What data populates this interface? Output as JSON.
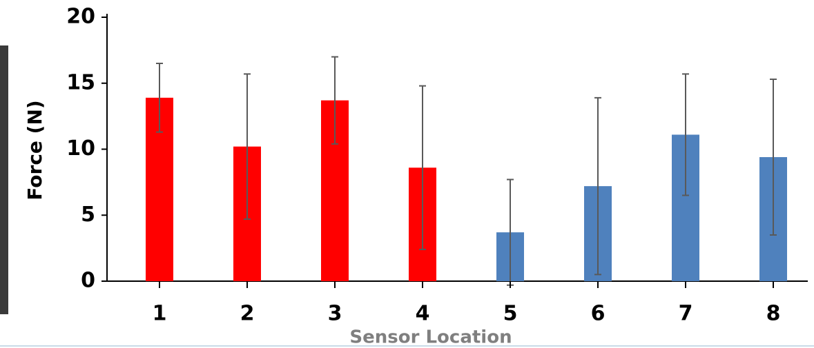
{
  "chart_data": {
    "type": "bar",
    "categories": [
      "1",
      "2",
      "3",
      "4",
      "5",
      "6",
      "7",
      "8"
    ],
    "values": [
      13.9,
      10.2,
      13.7,
      8.6,
      3.7,
      7.2,
      11.1,
      9.4
    ],
    "errors": [
      2.6,
      5.5,
      3.3,
      6.2,
      4.0,
      6.7,
      4.6,
      5.9
    ],
    "colors": [
      "#ff0000",
      "#ff0000",
      "#ff0000",
      "#ff0000",
      "#4f81bd",
      "#4f81bd",
      "#4f81bd",
      "#4f81bd"
    ],
    "ylim": [
      0,
      20
    ],
    "yticks": [
      0,
      5,
      10,
      15,
      20
    ],
    "ylabel": "Force (N)",
    "xlabel": "Sensor Location"
  }
}
